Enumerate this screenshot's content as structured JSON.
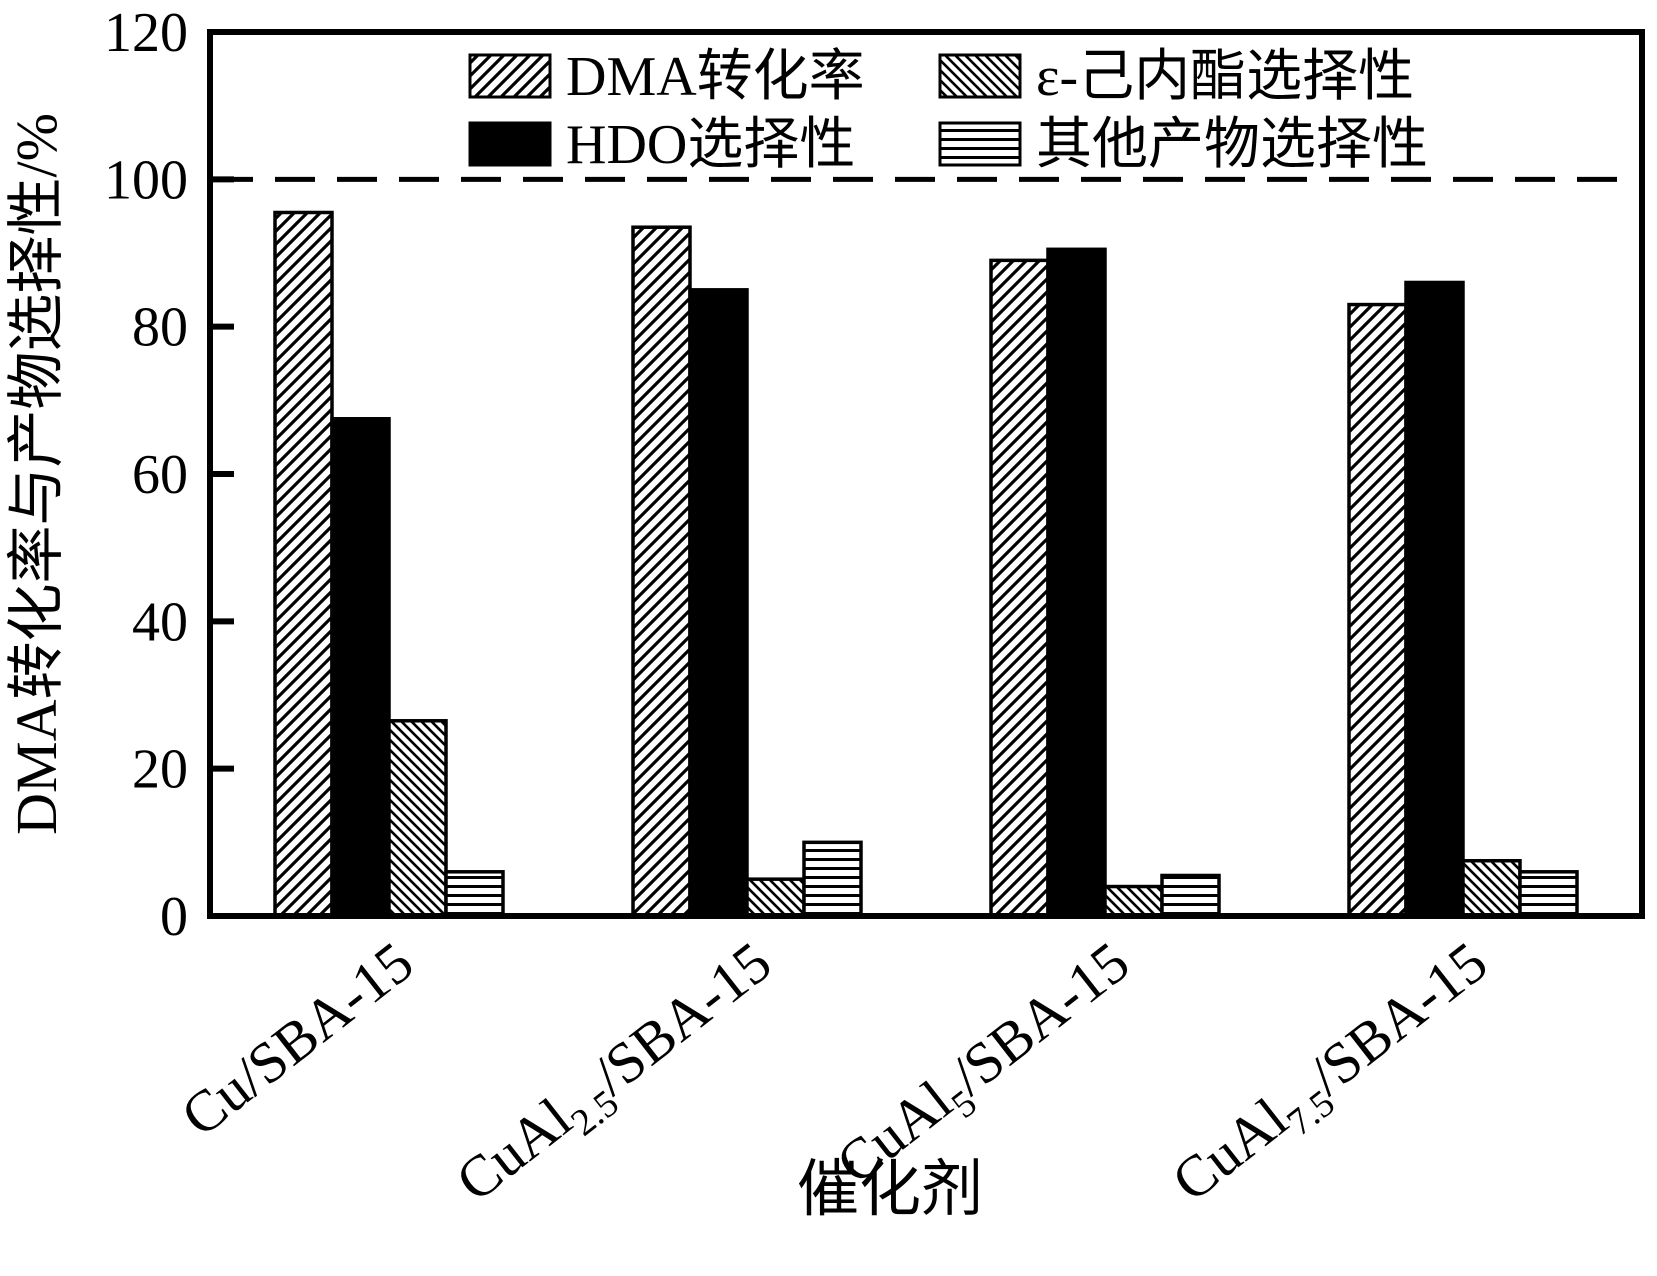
{
  "figure": {
    "background": "#ffffff",
    "axis_color": "#000000"
  },
  "chart_data": {
    "type": "bar",
    "title": "",
    "xlabel": "催化剂",
    "ylabel": "DMA转化率与产物选择性/%",
    "ylim": [
      0,
      120
    ],
    "yticks": [
      0,
      20,
      40,
      60,
      80,
      100,
      120
    ],
    "grid": false,
    "legend_position": "top-inside",
    "reference_line": {
      "y": 100,
      "style": "dashed",
      "color": "#000000"
    },
    "categories": [
      {
        "pre": "Cu",
        "sub": "",
        "post": "/SBA-15",
        "text": "Cu/SBA-15"
      },
      {
        "pre": "CuAl",
        "sub": "2.5",
        "post": "/SBA-15",
        "text": "CuAl2.5/SBA-15"
      },
      {
        "pre": "CuAl",
        "sub": "5",
        "post": "/SBA-15",
        "text": "CuAl5/SBA-15"
      },
      {
        "pre": "CuAl",
        "sub": "7.5",
        "post": "/SBA-15",
        "text": "CuAl7.5/SBA-15"
      }
    ],
    "series": [
      {
        "name": "DMA转化率",
        "pattern": "hatch-forward",
        "values": [
          95.5,
          93.5,
          89,
          83
        ]
      },
      {
        "name": "HDO选择性",
        "pattern": "solid",
        "values": [
          67.5,
          85,
          90.5,
          86
        ]
      },
      {
        "name": "ε-己内酯选择性",
        "pattern": "hatch-backward",
        "values": [
          26.5,
          5,
          4,
          7.5
        ]
      },
      {
        "name": "其他产物选择性",
        "pattern": "horizontal-lines",
        "values": [
          6,
          10,
          5.5,
          6
        ]
      }
    ]
  }
}
